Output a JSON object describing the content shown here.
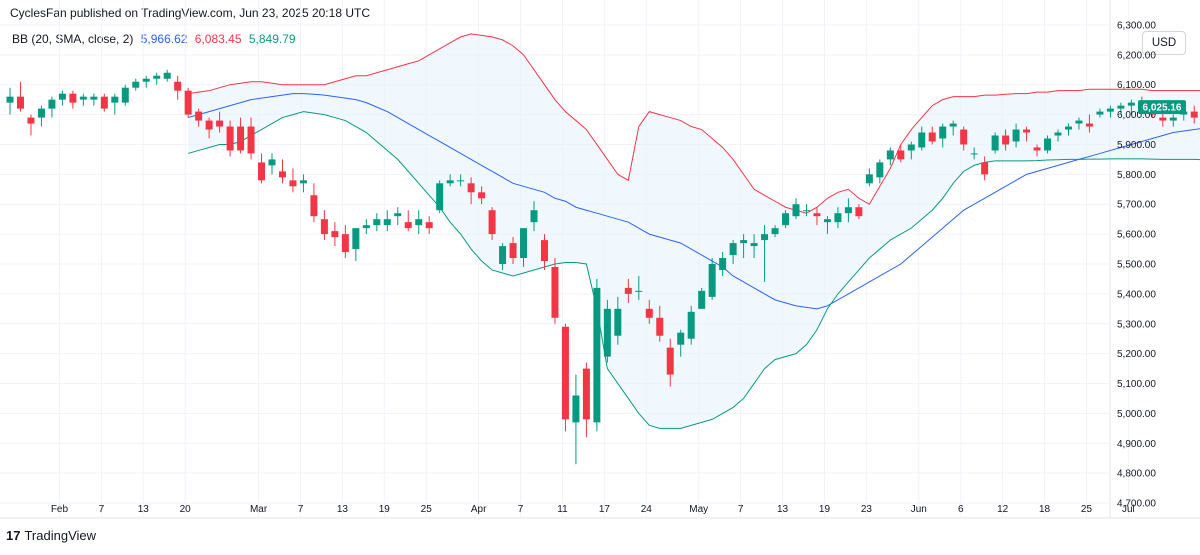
{
  "header": {
    "text": "CyclesFan published on TradingView.com, Jun 23, 2025 20:18 UTC"
  },
  "legend": {
    "name": "BB (20, SMA, close, 2)",
    "basis": "5,966.62",
    "upper": "6,083.45",
    "lower": "5,849.79"
  },
  "currency": "USD",
  "last_price_label": "6,025.16",
  "footer": {
    "logo": "17",
    "brand": "TradingView"
  },
  "colors": {
    "up": "#089981",
    "down": "#f23645",
    "basis": "#2962ff",
    "upper": "#f23645",
    "lower": "#089981",
    "fill": "#e3f2fd"
  },
  "chart_data": {
    "type": "candlestick",
    "title": "BB (20, SMA, close, 2)",
    "ylim": [
      4650,
      6350
    ],
    "y_ticks": [
      "4,700.00",
      "4,800.00",
      "4,900.00",
      "5,000.00",
      "5,100.00",
      "5,200.00",
      "5,300.00",
      "5,400.00",
      "5,500.00",
      "5,600.00",
      "5,700.00",
      "5,800.00",
      "5,900.00",
      "6,000.00",
      "6,100.00",
      "6,200.00",
      "6,300.00"
    ],
    "x_ticks": [
      {
        "label": "Feb",
        "i": 3
      },
      {
        "label": "7",
        "i": 7
      },
      {
        "label": "13",
        "i": 11
      },
      {
        "label": "20",
        "i": 15
      },
      {
        "label": "Mar",
        "i": 22
      },
      {
        "label": "7",
        "i": 26
      },
      {
        "label": "13",
        "i": 30
      },
      {
        "label": "19",
        "i": 34
      },
      {
        "label": "25",
        "i": 38
      },
      {
        "label": "Apr",
        "i": 43
      },
      {
        "label": "7",
        "i": 47
      },
      {
        "label": "11",
        "i": 51
      },
      {
        "label": "17",
        "i": 55
      },
      {
        "label": "24",
        "i": 59
      },
      {
        "label": "May",
        "i": 64
      },
      {
        "label": "7",
        "i": 68
      },
      {
        "label": "13",
        "i": 72
      },
      {
        "label": "19",
        "i": 76
      },
      {
        "label": "23",
        "i": 80
      },
      {
        "label": "Jun",
        "i": 85
      },
      {
        "label": "6",
        "i": 89
      },
      {
        "label": "12",
        "i": 93
      },
      {
        "label": "18",
        "i": 97
      },
      {
        "label": "25",
        "i": 101
      },
      {
        "label": "Jul",
        "i": 105
      }
    ],
    "candles": [
      [
        6040,
        6090,
        6000,
        6060
      ],
      [
        6060,
        6110,
        6010,
        6020
      ],
      [
        5990,
        6000,
        5930,
        5970
      ],
      [
        5990,
        6030,
        5960,
        6020
      ],
      [
        6020,
        6060,
        5990,
        6050
      ],
      [
        6050,
        6080,
        6030,
        6070
      ],
      [
        6070,
        6080,
        6020,
        6040
      ],
      [
        6050,
        6070,
        6030,
        6060
      ],
      [
        6050,
        6070,
        6030,
        6060
      ],
      [
        6060,
        6070,
        6010,
        6020
      ],
      [
        6040,
        6070,
        6000,
        6060
      ],
      [
        6040,
        6100,
        6030,
        6090
      ],
      [
        6090,
        6120,
        6080,
        6110
      ],
      [
        6110,
        6130,
        6090,
        6120
      ],
      [
        6120,
        6140,
        6100,
        6130
      ],
      [
        6120,
        6150,
        6110,
        6140
      ],
      [
        6110,
        6130,
        6050,
        6080
      ],
      [
        6080,
        6090,
        5990,
        6000
      ],
      [
        6010,
        6020,
        5960,
        5980
      ],
      [
        5980,
        5990,
        5920,
        5950
      ],
      [
        5980,
        6010,
        5940,
        5960
      ],
      [
        5960,
        5980,
        5860,
        5880
      ],
      [
        5960,
        5990,
        5870,
        5880
      ],
      [
        5960,
        5990,
        5850,
        5870
      ],
      [
        5840,
        5870,
        5770,
        5780
      ],
      [
        5830,
        5870,
        5800,
        5850
      ],
      [
        5810,
        5850,
        5770,
        5790
      ],
      [
        5780,
        5820,
        5740,
        5760
      ],
      [
        5770,
        5800,
        5740,
        5780
      ],
      [
        5730,
        5770,
        5640,
        5660
      ],
      [
        5650,
        5680,
        5580,
        5600
      ],
      [
        5610,
        5640,
        5560,
        5590
      ],
      [
        5600,
        5630,
        5520,
        5540
      ],
      [
        5550,
        5620,
        5510,
        5620
      ],
      [
        5620,
        5650,
        5600,
        5630
      ],
      [
        5630,
        5670,
        5610,
        5650
      ],
      [
        5630,
        5680,
        5610,
        5650
      ],
      [
        5660,
        5690,
        5630,
        5670
      ],
      [
        5640,
        5680,
        5610,
        5620
      ],
      [
        5630,
        5680,
        5600,
        5650
      ],
      [
        5640,
        5660,
        5600,
        5620
      ],
      [
        5680,
        5780,
        5670,
        5770
      ],
      [
        5770,
        5800,
        5760,
        5780
      ],
      [
        5780,
        5800,
        5760,
        5780
      ],
      [
        5770,
        5790,
        5700,
        5740
      ],
      [
        5740,
        5760,
        5700,
        5720
      ],
      [
        5680,
        5690,
        5580,
        5600
      ],
      [
        5500,
        5570,
        5480,
        5560
      ],
      [
        5570,
        5590,
        5500,
        5520
      ],
      [
        5520,
        5620,
        5490,
        5620
      ],
      [
        5640,
        5710,
        5610,
        5680
      ],
      [
        5580,
        5600,
        5480,
        5510
      ],
      [
        5490,
        5520,
        5300,
        5320
      ],
      [
        5290,
        5300,
        4940,
        4980
      ],
      [
        4970,
        5130,
        4830,
        5060
      ],
      [
        5150,
        5170,
        4920,
        4980
      ],
      [
        4970,
        5450,
        4940,
        5420
      ],
      [
        5190,
        5380,
        5170,
        5350
      ],
      [
        5260,
        5390,
        5230,
        5350
      ],
      [
        5420,
        5450,
        5370,
        5400
      ],
      [
        5410,
        5460,
        5380,
        5410
      ],
      [
        5350,
        5380,
        5300,
        5320
      ],
      [
        5320,
        5360,
        5240,
        5260
      ],
      [
        5220,
        5250,
        5090,
        5130
      ],
      [
        5230,
        5280,
        5190,
        5270
      ],
      [
        5250,
        5360,
        5230,
        5340
      ],
      [
        5350,
        5420,
        5350,
        5410
      ],
      [
        5390,
        5520,
        5380,
        5500
      ],
      [
        5480,
        5540,
        5460,
        5520
      ],
      [
        5530,
        5580,
        5500,
        5570
      ],
      [
        5570,
        5600,
        5520,
        5580
      ],
      [
        5560,
        5600,
        5520,
        5570
      ],
      [
        5580,
        5630,
        5440,
        5600
      ],
      [
        5600,
        5630,
        5590,
        5620
      ],
      [
        5630,
        5680,
        5620,
        5670
      ],
      [
        5660,
        5720,
        5650,
        5700
      ],
      [
        5680,
        5700,
        5660,
        5680
      ],
      [
        5670,
        5690,
        5630,
        5660
      ],
      [
        5640,
        5660,
        5600,
        5650
      ],
      [
        5640,
        5690,
        5620,
        5670
      ],
      [
        5670,
        5720,
        5640,
        5690
      ],
      [
        5690,
        5700,
        5650,
        5660
      ],
      [
        5770,
        5820,
        5760,
        5800
      ],
      [
        5790,
        5850,
        5770,
        5840
      ],
      [
        5850,
        5890,
        5830,
        5880
      ],
      [
        5880,
        5900,
        5840,
        5850
      ],
      [
        5880,
        5910,
        5850,
        5900
      ],
      [
        5890,
        5960,
        5880,
        5940
      ],
      [
        5940,
        5960,
        5900,
        5910
      ],
      [
        5920,
        5970,
        5890,
        5960
      ],
      [
        5960,
        5980,
        5930,
        5970
      ],
      [
        5950,
        5960,
        5880,
        5900
      ],
      [
        5870,
        5890,
        5850,
        5870
      ],
      [
        5840,
        5860,
        5780,
        5800
      ],
      [
        5880,
        5940,
        5870,
        5930
      ],
      [
        5930,
        5950,
        5880,
        5900
      ],
      [
        5910,
        5970,
        5890,
        5950
      ],
      [
        5950,
        5960,
        5910,
        5940
      ],
      [
        5890,
        5900,
        5860,
        5880
      ],
      [
        5880,
        5930,
        5870,
        5920
      ],
      [
        5930,
        5950,
        5910,
        5940
      ],
      [
        5950,
        5970,
        5930,
        5960
      ],
      [
        5970,
        5990,
        5950,
        5980
      ],
      [
        5970,
        6000,
        5940,
        5960
      ],
      [
        6000,
        6020,
        5990,
        6010
      ],
      [
        6010,
        6030,
        5990,
        6020
      ],
      [
        6020,
        6040,
        6000,
        6030
      ],
      [
        6030,
        6050,
        6000,
        6040
      ],
      [
        6040,
        6060,
        6010,
        6020
      ],
      [
        6020,
        6040,
        5990,
        6000
      ],
      [
        5990,
        6010,
        5960,
        5980
      ],
      [
        5980,
        6000,
        5960,
        5990
      ],
      [
        6000,
        6020,
        5980,
        6010
      ],
      [
        6010,
        6030,
        5970,
        5990
      ],
      [
        5980,
        6000,
        5960,
        5970
      ],
      [
        5970,
        6020,
        5950,
        6025
      ]
    ],
    "upper_band": [
      6070,
      6075,
      6080,
      6090,
      6100,
      6105,
      6110,
      6110,
      6105,
      6100,
      6100,
      6100,
      6100,
      6100,
      6110,
      6120,
      6130,
      6130,
      6140,
      6150,
      6160,
      6170,
      6180,
      6200,
      6220,
      6240,
      6260,
      6270,
      6265,
      6260,
      6250,
      6230,
      6200,
      6150,
      6100,
      6050,
      6010,
      5980,
      5950,
      5900,
      5850,
      5800,
      5780,
      5960,
      6010,
      6000,
      5990,
      5980,
      5960,
      5950,
      5920,
      5890,
      5850,
      5800,
      5750,
      5730,
      5710,
      5690,
      5680,
      5670,
      5690,
      5720,
      5740,
      5750,
      5720,
      5700,
      5760,
      5820,
      5900,
      5950,
      5990,
      6030,
      6050,
      6060,
      6060,
      6060,
      6065,
      6065,
      6068,
      6070,
      6070,
      6075,
      6075,
      6080,
      6080,
      6080,
      6085,
      6085,
      6085,
      6085,
      6085,
      6085,
      6080,
      6080,
      6080,
      6080,
      6080,
      6080,
      6083
    ],
    "basis_band": [
      5990,
      6000,
      6010,
      6020,
      6030,
      6040,
      6050,
      6055,
      6060,
      6065,
      6070,
      6070,
      6068,
      6065,
      6060,
      6055,
      6050,
      6040,
      6025,
      6010,
      5990,
      5970,
      5950,
      5930,
      5910,
      5890,
      5870,
      5850,
      5830,
      5810,
      5790,
      5770,
      5760,
      5750,
      5740,
      5720,
      5710,
      5690,
      5680,
      5670,
      5660,
      5650,
      5640,
      5620,
      5600,
      5590,
      5580,
      5570,
      5550,
      5530,
      5510,
      5490,
      5460,
      5440,
      5420,
      5400,
      5380,
      5370,
      5360,
      5355,
      5350,
      5360,
      5380,
      5400,
      5420,
      5440,
      5460,
      5480,
      5500,
      5530,
      5560,
      5590,
      5620,
      5650,
      5680,
      5700,
      5720,
      5740,
      5760,
      5780,
      5800,
      5810,
      5820,
      5830,
      5840,
      5850,
      5860,
      5870,
      5880,
      5890,
      5900,
      5910,
      5920,
      5930,
      5940,
      5945,
      5950,
      5955,
      5967
    ],
    "lower_band": [
      5870,
      5880,
      5890,
      5900,
      5900,
      5910,
      5930,
      5950,
      5970,
      5990,
      6000,
      6010,
      6005,
      6000,
      5990,
      5980,
      5960,
      5940,
      5910,
      5880,
      5850,
      5810,
      5770,
      5730,
      5690,
      5640,
      5600,
      5550,
      5510,
      5480,
      5470,
      5460,
      5470,
      5480,
      5490,
      5500,
      5505,
      5505,
      5500,
      5350,
      5150,
      5100,
      5050,
      5000,
      4960,
      4950,
      4950,
      4950,
      4960,
      4970,
      4980,
      5000,
      5020,
      5050,
      5100,
      5150,
      5180,
      5190,
      5200,
      5230,
      5280,
      5350,
      5400,
      5440,
      5480,
      5520,
      5550,
      5580,
      5600,
      5620,
      5650,
      5680,
      5720,
      5770,
      5810,
      5830,
      5840,
      5845,
      5845,
      5845,
      5845,
      5846,
      5848,
      5849,
      5850,
      5850,
      5851,
      5851,
      5852,
      5852,
      5852,
      5852,
      5851,
      5850,
      5850,
      5850,
      5850,
      5849,
      5850
    ]
  }
}
